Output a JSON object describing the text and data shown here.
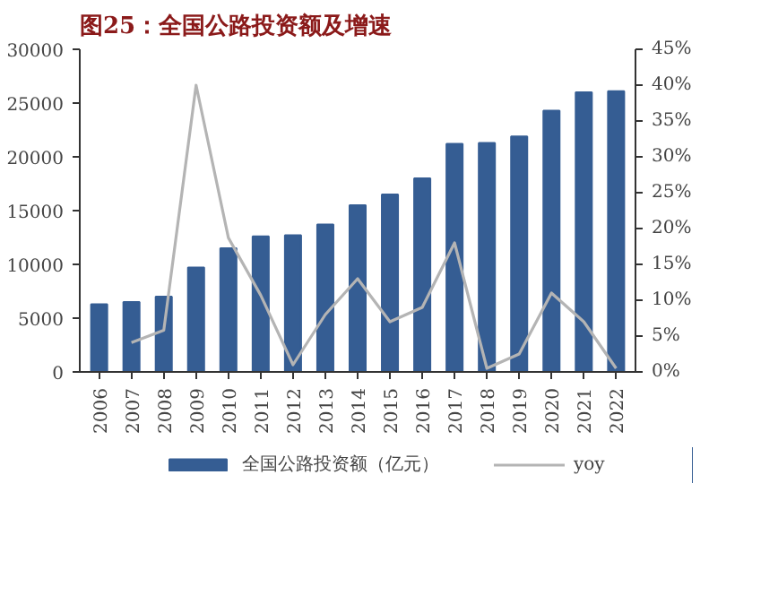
{
  "chart_data": {
    "type": "bar",
    "title": "图25：全国公路投资额及增速",
    "categories": [
      "2006",
      "2007",
      "2008",
      "2009",
      "2010",
      "2011",
      "2012",
      "2013",
      "2014",
      "2015",
      "2016",
      "2017",
      "2018",
      "2019",
      "2020",
      "2021",
      "2022"
    ],
    "series": [
      {
        "name": "全国公路投资额（亿元）",
        "color": "#355d93",
        "values": [
          6300,
          6500,
          7000,
          9700,
          11500,
          12600,
          12700,
          13700,
          15500,
          16500,
          18000,
          21200,
          21300,
          21900,
          24300,
          26000,
          26100
        ]
      },
      {
        "name": "yoy",
        "color": "#b4b4b4",
        "type": "line",
        "axis": "y2",
        "values": [
          null,
          4.1,
          5.8,
          40,
          18.7,
          10.7,
          1,
          8,
          13,
          7,
          9,
          18,
          0.5,
          2.5,
          11,
          7,
          0.5
        ]
      }
    ],
    "ylim": [
      0,
      30000
    ],
    "yticks": [
      0,
      5000,
      10000,
      15000,
      20000,
      25000,
      30000
    ],
    "y2lim": [
      0,
      45
    ],
    "y2ticks": [
      {
        "value": 0,
        "label": "0%"
      },
      {
        "value": 5,
        "label": "5%"
      },
      {
        "value": 10,
        "label": "10%"
      },
      {
        "value": 15,
        "label": "15%"
      },
      {
        "value": 20,
        "label": "20%"
      },
      {
        "value": 25,
        "label": "25%"
      },
      {
        "value": 30,
        "label": "30%"
      },
      {
        "value": 35,
        "label": "35%"
      },
      {
        "value": 40,
        "label": "40%"
      },
      {
        "value": 45,
        "label": "45%"
      }
    ],
    "legend": "bottom",
    "grid": false,
    "marker": "none",
    "line_style": "solid"
  }
}
